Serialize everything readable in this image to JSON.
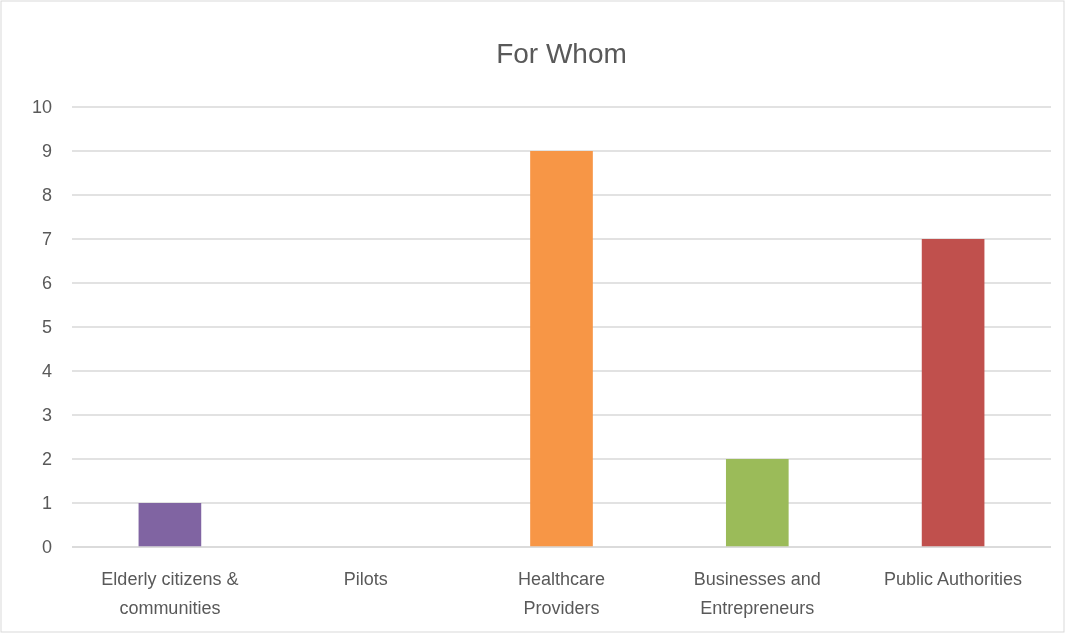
{
  "chart_data": {
    "type": "bar",
    "title": "For Whom",
    "categories": [
      "Elderly citizens & communities",
      "Pilots",
      "Healthcare Providers",
      "Businesses and Entrepreneurs",
      "Public Authorities"
    ],
    "values": [
      1,
      0,
      9,
      2,
      7
    ],
    "colors": [
      "#8064a2",
      "#4f81bd",
      "#f79646",
      "#9bbb59",
      "#c0504d"
    ],
    "ylim": [
      0,
      10
    ],
    "yticks": [
      0,
      1,
      2,
      3,
      4,
      5,
      6,
      7,
      8,
      9,
      10
    ],
    "grid": "y"
  }
}
